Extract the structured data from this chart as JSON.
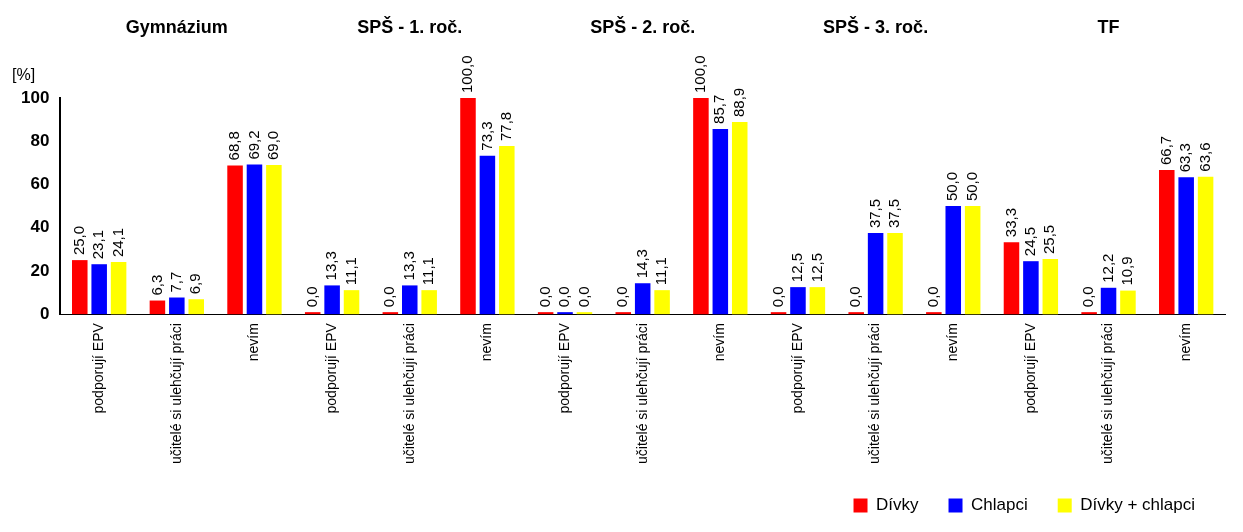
{
  "chart_data": {
    "type": "bar",
    "ylabel": "[%]",
    "annotations": [
      "Gymnázium",
      "SPŠ - 1. roč.",
      "SPŠ - 2. roč.",
      "SPŠ - 3. roč.",
      "TF"
    ],
    "categories": [
      "podporují EPV",
      "učitelé si ulehčují práci",
      "nevím",
      "podporují EPV",
      "učitelé si ulehčují práci",
      "nevím",
      "podporují EPV",
      "učitelé si ulehčují práci",
      "nevím",
      "podporují EPV",
      "učitelé si ulehčují práci",
      "nevím",
      "podporují EPV",
      "učitelé si ulehčují práci",
      "nevím"
    ],
    "series": [
      {
        "name": "Dívky",
        "color": "#ff0000",
        "values": [
          25.0,
          6.3,
          68.8,
          0.0,
          0.0,
          100.0,
          0.0,
          0.0,
          100.0,
          0.0,
          0.0,
          0.0,
          33.3,
          0.0,
          66.7
        ],
        "value_labels": [
          "25,0",
          "6,3",
          "68,8",
          "0,0",
          "0,0",
          "100,0",
          "0,0",
          "0,0",
          "100,0",
          "0,0",
          "0,0",
          "0,0",
          "33,3",
          "0,0",
          "66,7"
        ]
      },
      {
        "name": "Chlapci",
        "color": "#0000ff",
        "values": [
          23.1,
          7.7,
          69.2,
          13.3,
          13.3,
          73.3,
          0.0,
          14.3,
          85.7,
          12.5,
          37.5,
          50.0,
          24.5,
          12.2,
          63.3
        ],
        "value_labels": [
          "23,1",
          "7,7",
          "69,2",
          "13,3",
          "13,3",
          "73,3",
          "0,0",
          "14,3",
          "85,7",
          "12,5",
          "37,5",
          "50,0",
          "24,5",
          "12,2",
          "63,3"
        ]
      },
      {
        "name": "Dívky + chlapci",
        "color": "#ffff00",
        "values": [
          24.1,
          6.9,
          69.0,
          11.1,
          11.1,
          77.8,
          0.0,
          11.1,
          88.9,
          12.5,
          37.5,
          50.0,
          25.5,
          10.9,
          63.6
        ],
        "value_labels": [
          "24,1",
          "6,9",
          "69,0",
          "11,1",
          "11,1",
          "77,8",
          "0,0",
          "11,1",
          "88,9",
          "12,5",
          "37,5",
          "50,0",
          "25,5",
          "10,9",
          "63,6"
        ]
      }
    ],
    "ylim": [
      0,
      100
    ],
    "yticks": [
      0,
      20,
      40,
      60,
      80,
      100
    ],
    "grid": false,
    "legend": "bottom right"
  }
}
